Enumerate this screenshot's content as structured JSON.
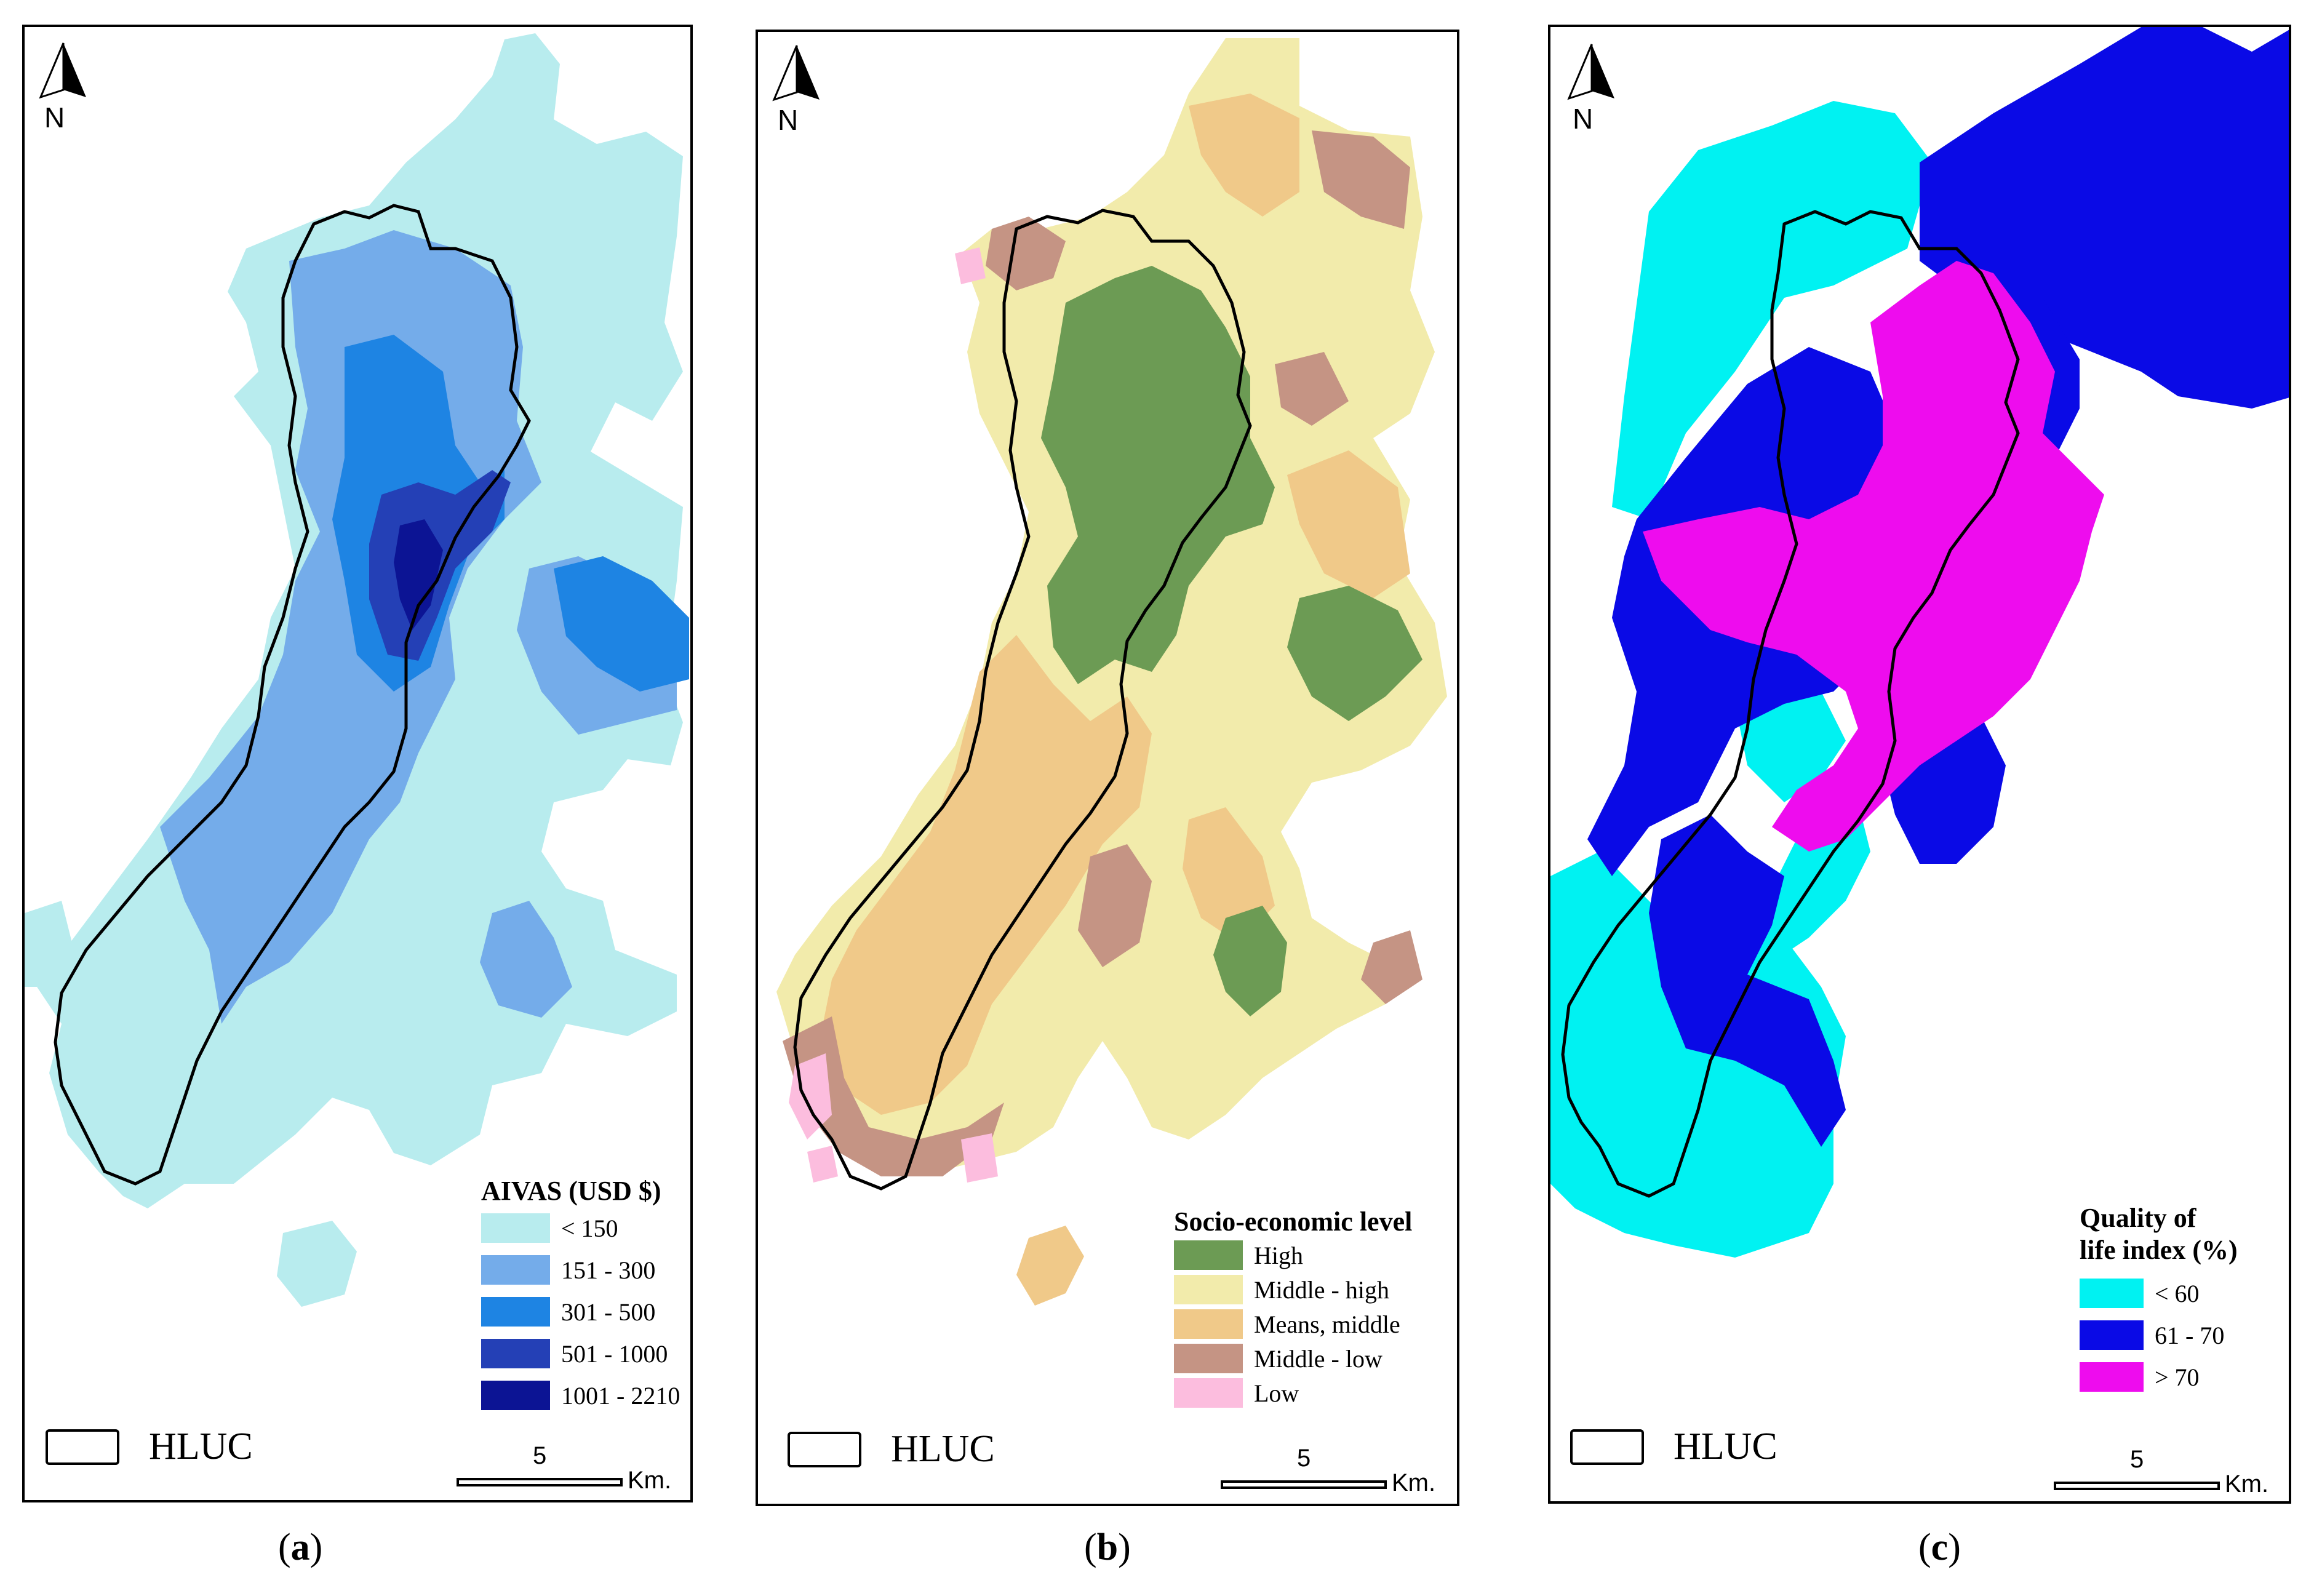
{
  "north_label": "N",
  "panels": [
    {
      "caption_open": "(",
      "caption_letter": "a",
      "caption_close": ")",
      "legend_title": "AIVAS (USD $)",
      "legend": [
        {
          "label": "< 150",
          "color": "#b8ecee"
        },
        {
          "label": "151 - 300",
          "color": "#74acea"
        },
        {
          "label": "301 - 500",
          "color": "#1e84e3"
        },
        {
          "label": "501 - 1000",
          "color": "#2440b6"
        },
        {
          "label": "1001 - 2210",
          "color": "#0c1494"
        }
      ],
      "boundary_label": "HLUC",
      "scale_value": "5",
      "scale_unit": "Km."
    },
    {
      "caption_open": "(",
      "caption_letter": "b",
      "caption_close": ")",
      "legend_title": "Socio-economic level",
      "legend": [
        {
          "label": "High",
          "color": "#6c9b54"
        },
        {
          "label": "Middle - high",
          "color": "#f2ebab"
        },
        {
          "label": "Means, middle",
          "color": "#f0c989"
        },
        {
          "label": "Middle - low",
          "color": "#c59484"
        },
        {
          "label": "Low",
          "color": "#fcbdde"
        }
      ],
      "boundary_label": "HLUC",
      "scale_value": "5",
      "scale_unit": "Km."
    },
    {
      "caption_open": "(",
      "caption_letter": "c",
      "caption_close": ")",
      "legend_title_line1": "Quality of",
      "legend_title_line2": "life index (%)",
      "legend": [
        {
          "label": "< 60",
          "color": "#00f2f2"
        },
        {
          "label": "61 - 70",
          "color": "#0a0ae6"
        },
        {
          "label": "> 70",
          "color": "#ee0cee"
        }
      ],
      "boundary_label": "HLUC",
      "scale_value": "5",
      "scale_unit": "Km."
    }
  ]
}
